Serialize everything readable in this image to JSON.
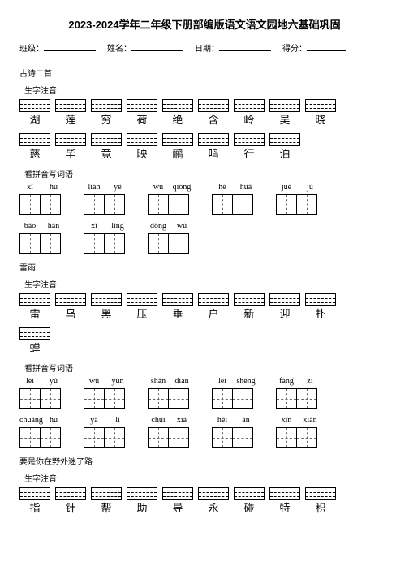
{
  "title": "2023-2024学年二年级下册部编版语文语文园地六基础巩固",
  "info": {
    "class_label": "班级：",
    "name_label": "姓名：",
    "date_label": "日期：",
    "score_label": "得分："
  },
  "sections": [
    {
      "heading": "古诗二首",
      "blocks": [
        {
          "sub": "生字注音",
          "type": "char-rows",
          "rows": [
            [
              "湖",
              "莲",
              "穷",
              "荷",
              "绝",
              "含",
              "岭",
              "吴",
              "晓"
            ],
            [
              "慈",
              "毕",
              "竟",
              "映",
              "鹂",
              "鸣",
              "行",
              "泊"
            ]
          ]
        },
        {
          "sub": "看拼音写词语",
          "type": "pinyin-words",
          "rows": [
            [
              {
                "p": [
                  "xī",
                  "hú"
                ]
              },
              {
                "p": [
                  "lián",
                  "yè"
                ]
              },
              {
                "p": [
                  "wú",
                  "qióng"
                ]
              },
              {
                "p": [
                  "hé",
                  "huā"
                ]
              },
              {
                "p": [
                  "jué",
                  "jù"
                ]
              }
            ],
            [
              {
                "p": [
                  "bāo",
                  "hán"
                ]
              },
              {
                "p": [
                  "xī",
                  "lǐng"
                ]
              },
              {
                "p": [
                  "dōng",
                  "wú"
                ]
              }
            ]
          ]
        }
      ]
    },
    {
      "heading": "雷雨",
      "blocks": [
        {
          "sub": "生字注音",
          "type": "char-rows",
          "rows": [
            [
              "雷",
              "乌",
              "黑",
              "压",
              "垂",
              "户",
              "新",
              "迎",
              "扑"
            ],
            [
              "蝉"
            ]
          ]
        },
        {
          "sub": "看拼音写词语",
          "type": "pinyin-words",
          "rows": [
            [
              {
                "p": [
                  "léi",
                  "yǔ"
                ]
              },
              {
                "p": [
                  "wū",
                  "yún"
                ]
              },
              {
                "p": [
                  "shǎn",
                  "diàn"
                ]
              },
              {
                "p": [
                  "léi",
                  "shēng"
                ]
              },
              {
                "p": [
                  "fáng",
                  "zi"
                ]
              }
            ],
            [
              {
                "p": [
                  "chuāng",
                  "hu"
                ]
              },
              {
                "p": [
                  "yā",
                  "lì"
                ]
              },
              {
                "p": [
                  "chuí",
                  "xià"
                ]
              },
              {
                "p": [
                  "hēi",
                  "àn"
                ]
              },
              {
                "p": [
                  "xīn",
                  "xiān"
                ]
              }
            ]
          ]
        }
      ]
    },
    {
      "heading": "要是你在野外迷了路",
      "blocks": [
        {
          "sub": "生字注音",
          "type": "char-rows",
          "rows": [
            [
              "指",
              "针",
              "帮",
              "助",
              "导",
              "永",
              "碰",
              "特",
              "积"
            ]
          ]
        }
      ]
    }
  ]
}
